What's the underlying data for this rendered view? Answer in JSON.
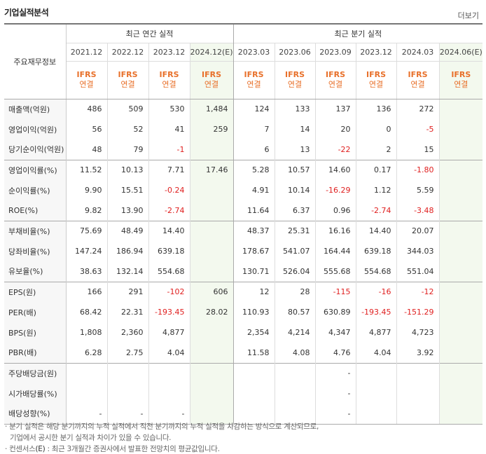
{
  "header": {
    "title": "기업실적분석",
    "more_label": "더보기"
  },
  "table": {
    "row_header_label": "주요재무정보",
    "annual_group_label": "최근 연간 실적",
    "quarterly_group_label": "최근 분기 실적",
    "periods": [
      "2021.12",
      "2022.12",
      "2023.12",
      "2024.12(E)",
      "2023.03",
      "2023.06",
      "2023.09",
      "2023.12",
      "2024.03",
      "2024.06(E)"
    ],
    "ifrs_label": "IFRS",
    "type_label": "연결",
    "rows": [
      {
        "label": "매출액(억원)",
        "values": [
          "486",
          "509",
          "530",
          "1,484",
          "124",
          "133",
          "137",
          "136",
          "272",
          ""
        ]
      },
      {
        "label": "영업이익(억원)",
        "values": [
          "56",
          "52",
          "41",
          "259",
          "7",
          "14",
          "20",
          "0",
          "-5",
          ""
        ]
      },
      {
        "label": "당기순이익(억원)",
        "values": [
          "48",
          "79",
          "-1",
          "",
          "6",
          "13",
          "-22",
          "2",
          "15",
          ""
        ]
      },
      {
        "label": "영업이익률(%)",
        "values": [
          "11.52",
          "10.13",
          "7.71",
          "17.46",
          "5.28",
          "10.57",
          "14.60",
          "0.17",
          "-1.80",
          ""
        ]
      },
      {
        "label": "순이익률(%)",
        "values": [
          "9.90",
          "15.51",
          "-0.24",
          "",
          "4.91",
          "10.14",
          "-16.29",
          "1.12",
          "5.59",
          ""
        ]
      },
      {
        "label": "ROE(%)",
        "values": [
          "9.82",
          "13.90",
          "-2.74",
          "",
          "11.64",
          "6.37",
          "0.96",
          "-2.74",
          "-3.48",
          ""
        ]
      },
      {
        "label": "부채비율(%)",
        "values": [
          "75.69",
          "48.49",
          "14.40",
          "",
          "48.37",
          "25.31",
          "16.16",
          "14.40",
          "20.07",
          ""
        ]
      },
      {
        "label": "당좌비율(%)",
        "values": [
          "147.24",
          "186.94",
          "639.18",
          "",
          "178.67",
          "541.07",
          "164.44",
          "639.18",
          "344.03",
          ""
        ]
      },
      {
        "label": "유보율(%)",
        "values": [
          "38.63",
          "132.14",
          "554.68",
          "",
          "130.71",
          "526.04",
          "555.68",
          "554.68",
          "551.04",
          ""
        ]
      },
      {
        "label": "EPS(원)",
        "values": [
          "166",
          "291",
          "-102",
          "606",
          "12",
          "28",
          "-115",
          "-16",
          "-12",
          ""
        ]
      },
      {
        "label": "PER(배)",
        "values": [
          "68.42",
          "22.31",
          "-193.45",
          "28.02",
          "110.93",
          "80.57",
          "630.89",
          "-193.45",
          "-151.29",
          ""
        ]
      },
      {
        "label": "BPS(원)",
        "values": [
          "1,808",
          "2,360",
          "4,877",
          "",
          "2,354",
          "4,214",
          "4,347",
          "4,877",
          "4,723",
          ""
        ]
      },
      {
        "label": "PBR(배)",
        "values": [
          "6.28",
          "2.75",
          "4.04",
          "",
          "11.58",
          "4.08",
          "4.76",
          "4.04",
          "3.92",
          ""
        ]
      },
      {
        "label": "주당배당금(원)",
        "values": [
          "",
          "",
          "",
          "",
          "",
          "",
          "-",
          "",
          "",
          ""
        ]
      },
      {
        "label": "시가배당률(%)",
        "values": [
          "",
          "",
          "",
          "",
          "",
          "",
          "-",
          "",
          "",
          ""
        ]
      },
      {
        "label": "배당성향(%)",
        "values": [
          "-",
          "-",
          "-",
          "",
          "",
          "",
          "-",
          "",
          "",
          ""
        ]
      }
    ]
  },
  "notes": {
    "line1": "· 분기 실적은 해당 분기까지의 누적 실적에서 직전 분기까지의 누적 실적을 차감하는 방식으로 계산되므로,",
    "line2": "기업에서 공시한 분기 실적과 차이가 있을 수 있습니다.",
    "line3_prefix": "· 컨센서스",
    "line3_e": "(E)",
    "line3_rest": ": 최근 3개월간 증권사에서 발표한 전망치의 평균값입니다."
  },
  "colors": {
    "accent_orange": "#e8702a",
    "negative_red": "#e02020",
    "estimate_bg": "#f3f9ee"
  }
}
